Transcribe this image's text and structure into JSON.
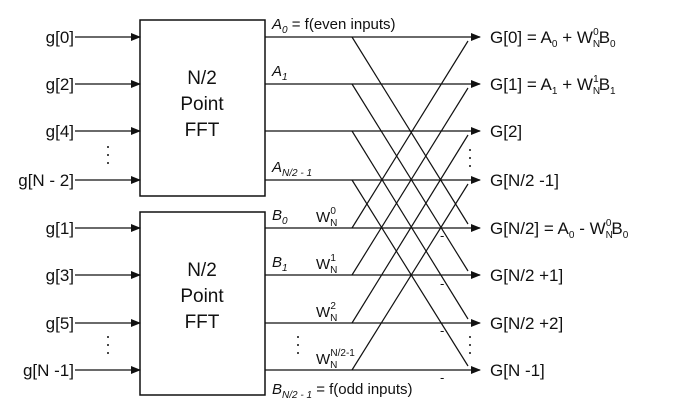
{
  "inputs_even": [
    "g[0]",
    "g[2]",
    "g[4]",
    "g[N - 2]"
  ],
  "inputs_odd": [
    "g[1]",
    "g[3]",
    "g[5]",
    "g[N -1]"
  ],
  "box_top": {
    "line1": "N/2",
    "line2": "Point",
    "line3": "FFT"
  },
  "box_bottom": {
    "line1": "N/2",
    "line2": "Point",
    "line3": "FFT"
  },
  "a_labels": {
    "a0_sym": "A",
    "a0_sub": "0",
    "a0_rest": " = f(even inputs)",
    "a1_sym": "A",
    "a1_sub": "1",
    "ah_sym": "A",
    "ah_sub": "N/2 - 1"
  },
  "b_labels": {
    "b0_sym": "B",
    "b0_sub": "0",
    "b1_sym": "B",
    "b1_sub": "1",
    "bh_sym": "B",
    "bh_sub": "N/2 - 1",
    "bh_rest": " = f(odd inputs)"
  },
  "twiddles": [
    {
      "base": "W",
      "sub": "N",
      "sup": "0"
    },
    {
      "base": "W",
      "sub": "N",
      "sup": "1"
    },
    {
      "base": "W",
      "sub": "N",
      "sup": "2"
    },
    {
      "base": "W",
      "sub": "N",
      "sup": "N/2-1"
    }
  ],
  "outputs": {
    "o0": {
      "pre": "G[0] = A",
      "s1": "0",
      "mid": " + W",
      "sub": "N",
      "sup": "0",
      "post": "B",
      "s2": "0"
    },
    "o1": {
      "pre": "G[1] = A",
      "s1": "1",
      "mid": " + W",
      "sub": "N",
      "sup": "1",
      "post": "B",
      "s2": "1"
    },
    "o2": "G[2]",
    "o3": "G[N/2 -1]",
    "o4": {
      "pre": "G[N/2] = A",
      "s1": "0",
      "mid": " - W",
      "sub": "N",
      "sup": "0",
      "post": "B",
      "s2": "0"
    },
    "o5": "G[N/2 +1]",
    "o6": "G[N/2 +2]",
    "o7": "G[N -1]"
  },
  "dots": "·",
  "minus": "-"
}
